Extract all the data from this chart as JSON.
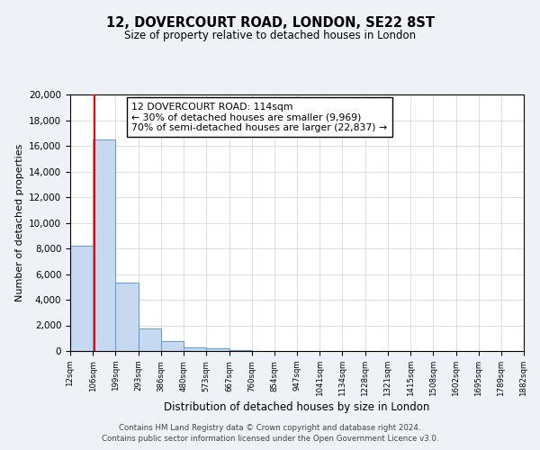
{
  "title1": "12, DOVERCOURT ROAD, LONDON, SE22 8ST",
  "title2": "Size of property relative to detached houses in London",
  "xlabel": "Distribution of detached houses by size in London",
  "ylabel": "Number of detached properties",
  "bin_edges": [
    12,
    106,
    199,
    293,
    386,
    480,
    573,
    667,
    760,
    854,
    947,
    1041,
    1134,
    1228,
    1321,
    1415,
    1508,
    1602,
    1695,
    1789,
    1882
  ],
  "bin_labels": [
    "12sqm",
    "106sqm",
    "199sqm",
    "293sqm",
    "386sqm",
    "480sqm",
    "573sqm",
    "667sqm",
    "760sqm",
    "854sqm",
    "947sqm",
    "1041sqm",
    "1134sqm",
    "1228sqm",
    "1321sqm",
    "1415sqm",
    "1508sqm",
    "1602sqm",
    "1695sqm",
    "1789sqm",
    "1882sqm"
  ],
  "bar_heights": [
    8200,
    16500,
    5300,
    1750,
    750,
    300,
    200,
    100,
    0,
    0,
    0,
    0,
    0,
    0,
    0,
    0,
    0,
    0,
    0,
    0
  ],
  "bar_color": "#c6d9f1",
  "bar_edge_color": "#5b9bd5",
  "red_line_x": 114,
  "annotation_line1": "12 DOVERCOURT ROAD: 114sqm",
  "annotation_line2": "← 30% of detached houses are smaller (9,969)",
  "annotation_line3": "70% of semi-detached houses are larger (22,837) →",
  "ylim": [
    0,
    20000
  ],
  "yticks": [
    0,
    2000,
    4000,
    6000,
    8000,
    10000,
    12000,
    14000,
    16000,
    18000,
    20000
  ],
  "footer1": "Contains HM Land Registry data © Crown copyright and database right 2024.",
  "footer2": "Contains public sector information licensed under the Open Government Licence v3.0.",
  "background_color": "#eef2f7",
  "plot_bg_color": "#ffffff",
  "grid_color": "#d0d0d0"
}
